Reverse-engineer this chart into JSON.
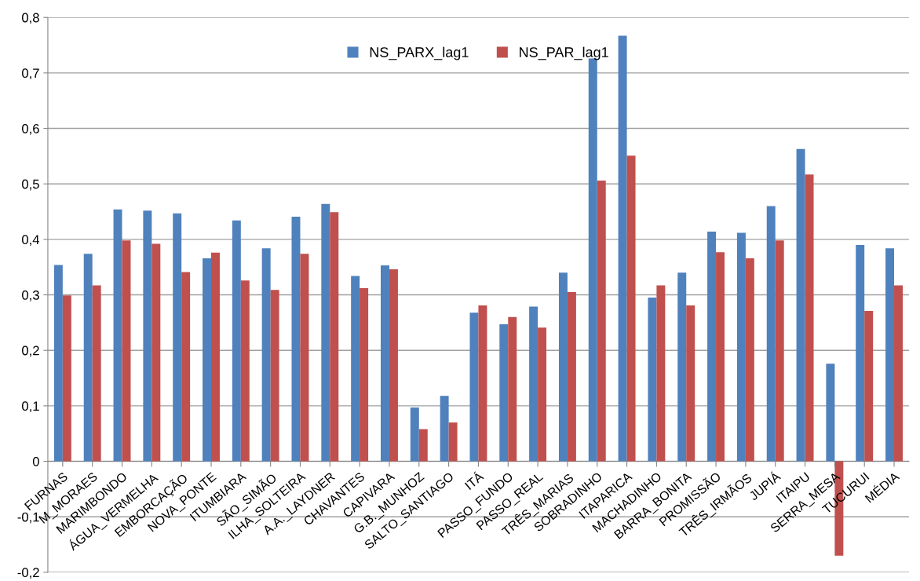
{
  "chart_data": {
    "type": "bar",
    "categories": [
      "FURNAS",
      "M_MORAES",
      "MARIMBONDO",
      "ÁGUA_VERMELHA",
      "EMBORCAÇÃO",
      "NOVA_PONTE",
      "ITUMBIARA",
      "SÃO_SIMÃO",
      "ILHA_SOLTEIRA",
      "A.A._LAYDNER",
      "CHAVANTES",
      "CAPIVARA",
      "G.B._MUNHOZ",
      "SALTO_SANTIAGO",
      "ITÁ",
      "PASSO_FUNDO",
      "PASSO_REAL",
      "TRÊS_MARIAS",
      "SOBRADINHO",
      "ITAPARICA",
      "MACHADINHO",
      "BARRA_BONITA",
      "PROMISSÃO",
      "TRÊS_IRMÃOS",
      "JUPIÁ",
      "ITAIPU",
      "SERRA_MESA",
      "TUCURUI",
      "MÉDIA"
    ],
    "series": [
      {
        "name": "NS_PARX_lag1",
        "color": "#4f81bd",
        "values": [
          0.354,
          0.374,
          0.454,
          0.452,
          0.447,
          0.366,
          0.434,
          0.384,
          0.441,
          0.464,
          0.334,
          0.353,
          0.097,
          0.118,
          0.268,
          0.247,
          0.279,
          0.34,
          0.726,
          0.767,
          0.295,
          0.34,
          0.414,
          0.412,
          0.46,
          0.563,
          0.176,
          0.39,
          0.384
        ]
      },
      {
        "name": "NS_PAR_lag1",
        "color": "#c0504d",
        "values": [
          0.299,
          0.317,
          0.398,
          0.392,
          0.341,
          0.376,
          0.326,
          0.309,
          0.374,
          0.449,
          0.312,
          0.346,
          0.058,
          0.07,
          0.281,
          0.26,
          0.241,
          0.305,
          0.506,
          0.551,
          0.317,
          0.281,
          0.377,
          0.366,
          0.398,
          0.517,
          -0.17,
          0.271,
          0.317
        ]
      }
    ],
    "ylim": [
      -0.2,
      0.8
    ],
    "yticks": [
      {
        "value": -0.2,
        "label": "-0,2"
      },
      {
        "value": -0.1,
        "label": "-0,1"
      },
      {
        "value": 0,
        "label": "0"
      },
      {
        "value": 0.1,
        "label": "0,1"
      },
      {
        "value": 0.2,
        "label": "0,2"
      },
      {
        "value": 0.3,
        "label": "0,3"
      },
      {
        "value": 0.4,
        "label": "0,4"
      },
      {
        "value": 0.5,
        "label": "0,5"
      },
      {
        "value": 0.6,
        "label": "0,6"
      },
      {
        "value": 0.7,
        "label": "0,7"
      },
      {
        "value": 0.8,
        "label": "0,8"
      }
    ],
    "grid": "y",
    "legend": "top"
  }
}
